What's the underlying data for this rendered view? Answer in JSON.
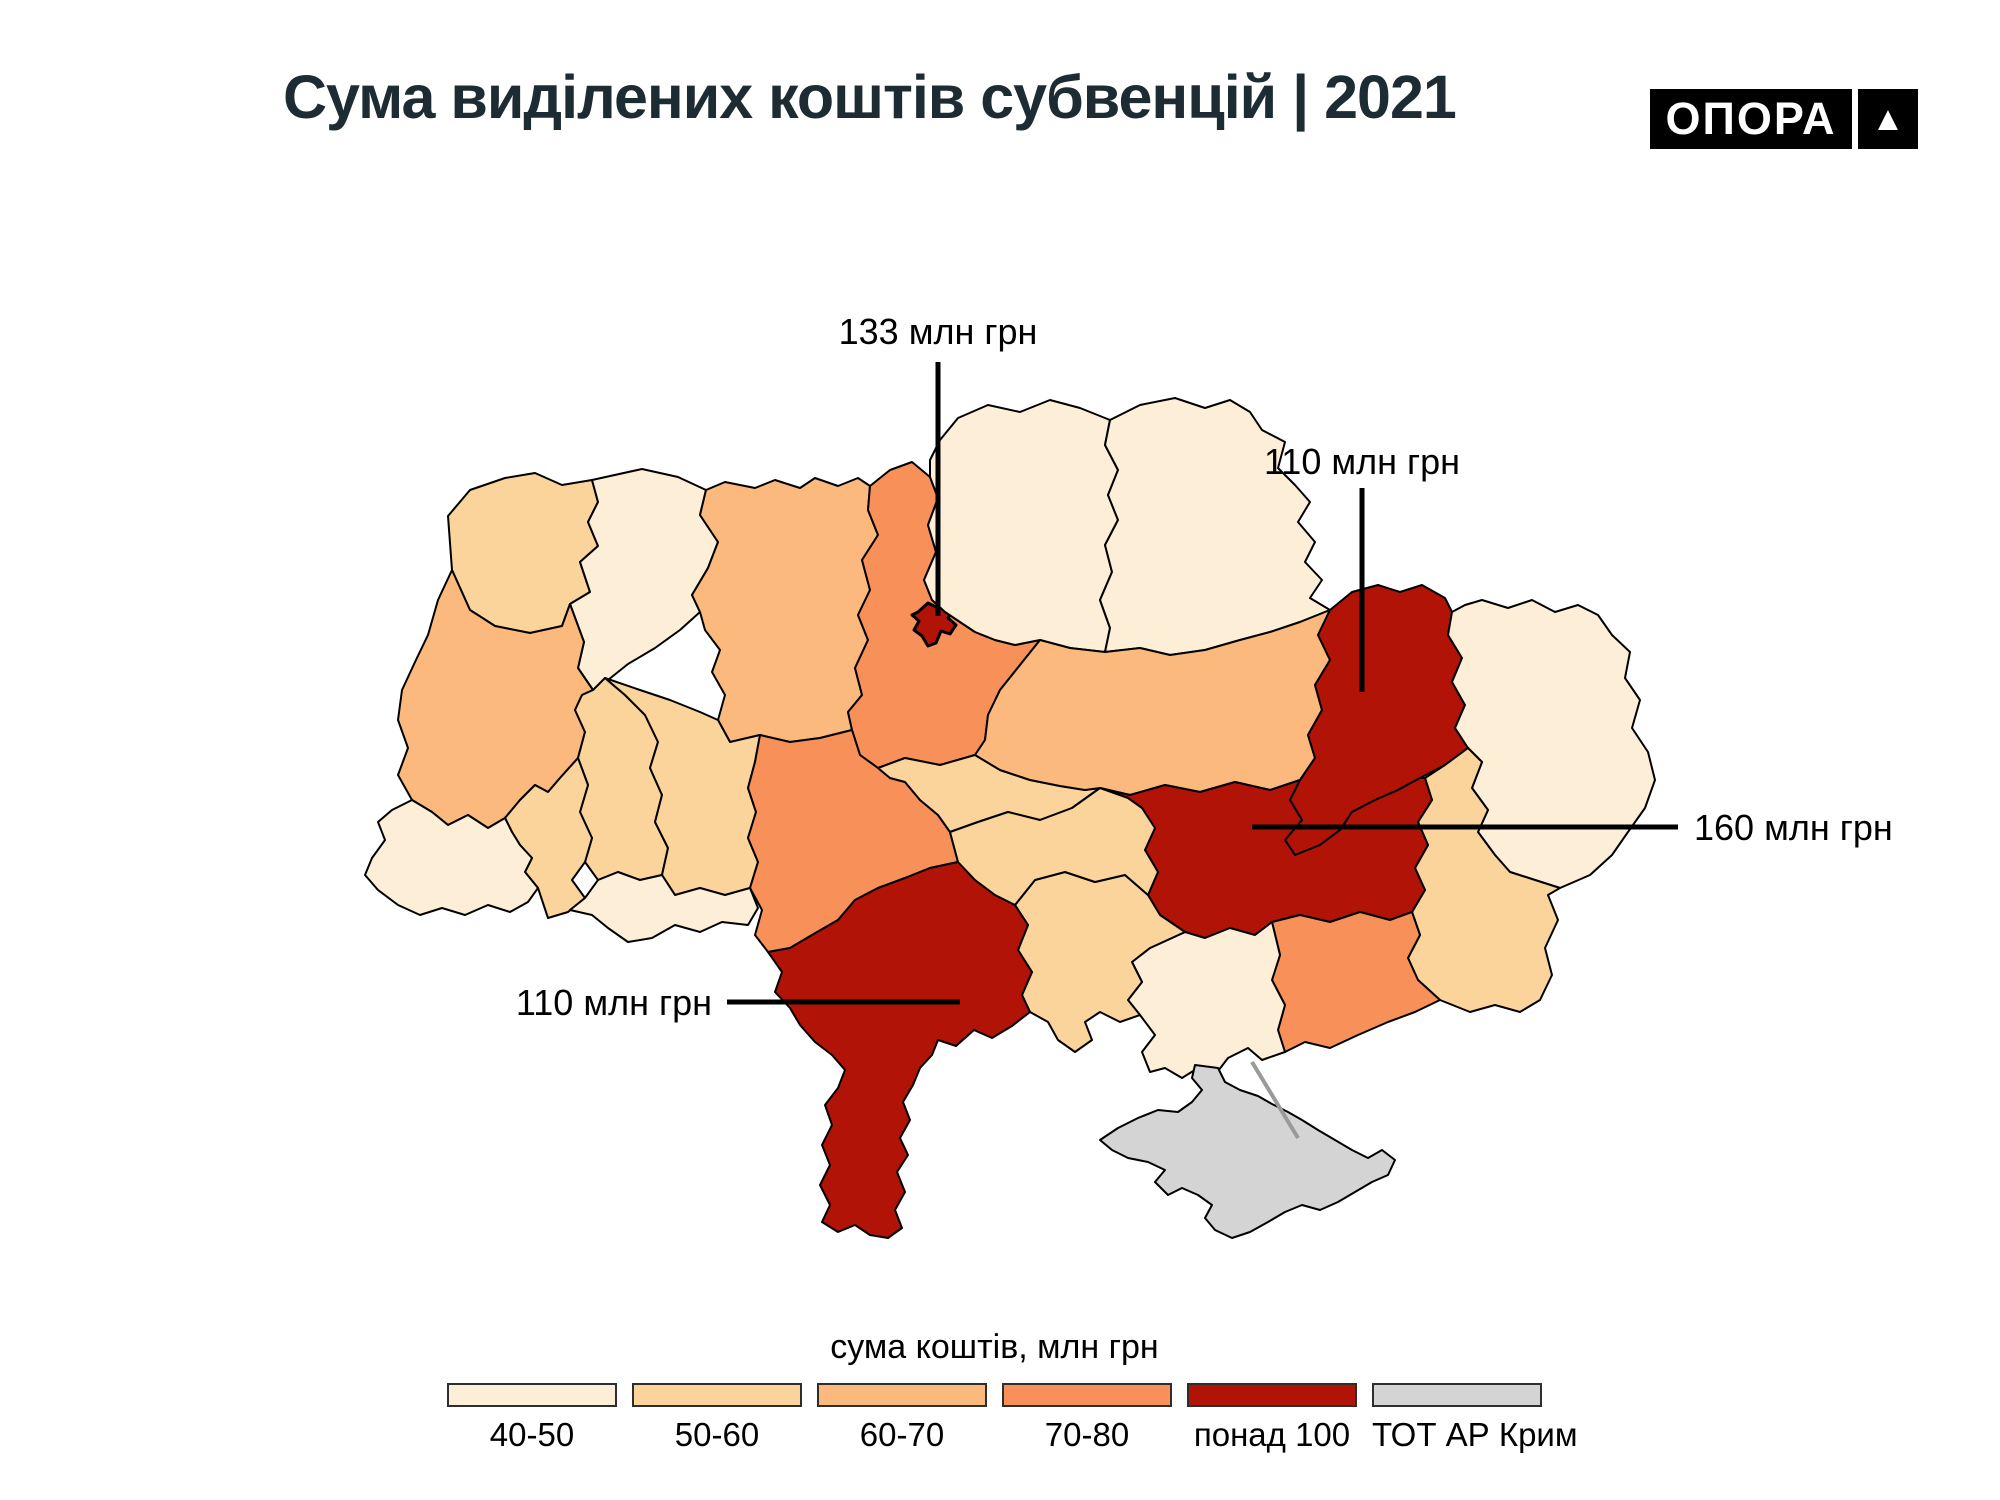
{
  "title": "Сума виділених коштів субвенцій | 2021",
  "logo": {
    "text": "ОПОРА",
    "symbol": "▲"
  },
  "legend": {
    "title": "сума коштів, млн грн",
    "items": [
      {
        "label": "40-50",
        "color": "#fdeed7"
      },
      {
        "label": "50-60",
        "color": "#fbd49c"
      },
      {
        "label": "60-70",
        "color": "#fbb97e"
      },
      {
        "label": "70-80",
        "color": "#f89159"
      },
      {
        "label": "понад 100",
        "color": "#b11307"
      },
      {
        "label": "ТОТ АР Крим",
        "color": "#d4d4d4"
      }
    ]
  },
  "annotations": [
    {
      "region": "kyiv_city",
      "text": "133 млн грн"
    },
    {
      "region": "kharkiv",
      "text": "110 млн грн"
    },
    {
      "region": "dnipro",
      "text": "160 млн грн"
    },
    {
      "region": "odesa",
      "text": "110 млн грн"
    }
  ],
  "chart_data": {
    "type": "choropleth-map",
    "title": "Сума виділених коштів субвенцій | 2021",
    "unit": "млн грн",
    "legend_title": "сума коштів, млн грн",
    "categories": [
      "40-50",
      "50-60",
      "60-70",
      "70-80",
      "понад 100",
      "ТОТ АР Крим"
    ],
    "regions": [
      {
        "id": "volyn",
        "name": "Волинська",
        "category": "50-60"
      },
      {
        "id": "rivne",
        "name": "Рівненська",
        "category": "40-50"
      },
      {
        "id": "zhytomyr",
        "name": "Житомирська",
        "category": "60-70"
      },
      {
        "id": "kyiv_obl",
        "name": "Київська",
        "category": "70-80"
      },
      {
        "id": "kyiv_city",
        "name": "м. Київ",
        "category": "понад 100",
        "value": 133
      },
      {
        "id": "chernihiv",
        "name": "Чернігівська",
        "category": "40-50"
      },
      {
        "id": "sumy",
        "name": "Сумська",
        "category": "40-50"
      },
      {
        "id": "lviv",
        "name": "Львівська",
        "category": "60-70"
      },
      {
        "id": "ternopil",
        "name": "Тернопільська",
        "category": "50-60"
      },
      {
        "id": "khmelnytskyi",
        "name": "Хмельницька",
        "category": "50-60"
      },
      {
        "id": "vinnytsia",
        "name": "Вінницька",
        "category": "70-80"
      },
      {
        "id": "cherkasy",
        "name": "Черкаська",
        "category": "50-60"
      },
      {
        "id": "poltava",
        "name": "Полтавська",
        "category": "60-70"
      },
      {
        "id": "kharkiv",
        "name": "Харківська",
        "category": "понад 100",
        "value": 110
      },
      {
        "id": "luhansk",
        "name": "Луганська",
        "category": "40-50"
      },
      {
        "id": "donetsk",
        "name": "Донецька",
        "category": "50-60"
      },
      {
        "id": "dnipro",
        "name": "Дніпропетровська",
        "category": "понад 100",
        "value": 160
      },
      {
        "id": "zaporizhzhia",
        "name": "Запорізька",
        "category": "70-80"
      },
      {
        "id": "kherson",
        "name": "Херсонська",
        "category": "40-50"
      },
      {
        "id": "mykolaiv",
        "name": "Миколаївська",
        "category": "50-60"
      },
      {
        "id": "odesa",
        "name": "Одеська",
        "category": "понад 100",
        "value": 110
      },
      {
        "id": "kirovohrad",
        "name": "Кіровоградська",
        "category": "50-60"
      },
      {
        "id": "ivano_frankivsk",
        "name": "Івано-Франківська",
        "category": "50-60"
      },
      {
        "id": "zakarpattia",
        "name": "Закарпатська",
        "category": "40-50"
      },
      {
        "id": "chernivtsi",
        "name": "Чернівецька",
        "category": "40-50"
      },
      {
        "id": "crimea",
        "name": "АР Крим",
        "category": "ТОТ АР Крим"
      }
    ]
  }
}
